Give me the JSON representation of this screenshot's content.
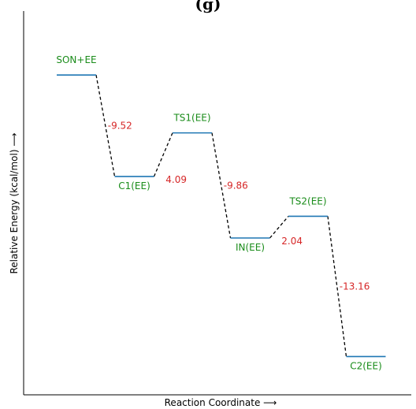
{
  "chart_data": {
    "type": "energy-profile",
    "panel_label": "(g)",
    "xlabel": "Reaction Coordinate ⟶",
    "ylabel": "Relative Energy (kcal/mol) ⟶",
    "ylim": [
      -30,
      6
    ],
    "grid": false,
    "level_color": "#1f77b4",
    "state_label_color": "#1a8c1a",
    "delta_label_color": "#d62728",
    "connector_color": "#000000",
    "states": [
      {
        "name": "SON+EE",
        "energy": 0.0
      },
      {
        "name": "C1(EE)",
        "energy": -9.52
      },
      {
        "name": "TS1(EE)",
        "energy": -5.43
      },
      {
        "name": "IN(EE)",
        "energy": -15.29
      },
      {
        "name": "TS2(EE)",
        "energy": -13.25
      },
      {
        "name": "C2(EE)",
        "energy": -26.41
      }
    ],
    "deltas": [
      "-9.52",
      "4.09",
      "-9.86",
      "2.04",
      "-13.16"
    ]
  }
}
